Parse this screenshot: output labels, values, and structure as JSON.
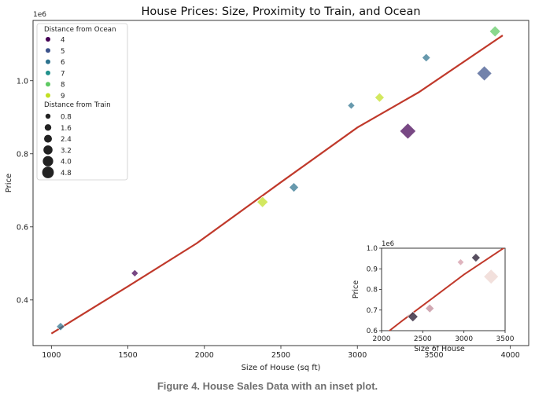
{
  "caption": "Figure 4. House Sales Data with an inset plot.",
  "chart_data": [
    {
      "type": "scatter",
      "title": "House Prices: Size, Proximity to Train, and Ocean",
      "xlabel": "Size of House (sq ft)",
      "ylabel": "Price",
      "y_offset_label": "1e6",
      "xlim": [
        880,
        4120
      ],
      "ylim": [
        0.275,
        1.165
      ],
      "xticks": [
        1000,
        1500,
        2000,
        2500,
        3000,
        3500,
        4000
      ],
      "yticks": [
        0.4,
        0.6,
        0.8,
        1.0
      ],
      "ytick_labels": [
        "0.4",
        "0.6",
        "0.8",
        "1.0"
      ],
      "marker": "diamond",
      "points": [
        {
          "x": 1060,
          "y": 0.327,
          "ocean": 6,
          "train": 1.2
        },
        {
          "x": 1545,
          "y": 0.473,
          "ocean": 4,
          "train": 0.8
        },
        {
          "x": 2380,
          "y": 0.668,
          "ocean": 9,
          "train": 2.2
        },
        {
          "x": 2585,
          "y": 0.708,
          "ocean": 6,
          "train": 1.6
        },
        {
          "x": 2960,
          "y": 0.932,
          "ocean": 6,
          "train": 0.8
        },
        {
          "x": 3145,
          "y": 0.954,
          "ocean": 9,
          "train": 1.6
        },
        {
          "x": 3330,
          "y": 0.862,
          "ocean": 4,
          "train": 4.0
        },
        {
          "x": 3450,
          "y": 1.063,
          "ocean": 6,
          "train": 1.2
        },
        {
          "x": 3830,
          "y": 1.02,
          "ocean": 5,
          "train": 3.6
        },
        {
          "x": 3900,
          "y": 1.135,
          "ocean": 8,
          "train": 2.2
        }
      ],
      "trend_line": {
        "x": [
          1000,
          1500,
          1950,
          2500,
          3000,
          3400,
          3950
        ],
        "y": [
          0.308,
          0.437,
          0.555,
          0.722,
          0.872,
          0.968,
          1.124
        ],
        "color": "#c0392b"
      },
      "legend": {
        "position": "upper-left",
        "hue_title": "Distance from Ocean",
        "hue_entries": [
          {
            "label": "4",
            "color": "#440154"
          },
          {
            "label": "5",
            "color": "#3b528b"
          },
          {
            "label": "6",
            "color": "#2c728e"
          },
          {
            "label": "7",
            "color": "#21918c"
          },
          {
            "label": "8",
            "color": "#5ec962"
          },
          {
            "label": "9",
            "color": "#c2df23"
          }
        ],
        "size_title": "Distance from Train",
        "size_entries": [
          {
            "label": "0.8",
            "value": 0.8
          },
          {
            "label": "1.6",
            "value": 1.6
          },
          {
            "label": "2.4",
            "value": 2.4
          },
          {
            "label": "3.2",
            "value": 3.2
          },
          {
            "label": "4.0",
            "value": 4.0
          },
          {
            "label": "4.8",
            "value": 4.8
          }
        ]
      }
    },
    {
      "type": "scatter",
      "inset": true,
      "xlabel": "Size of House",
      "ylabel": "Price",
      "y_offset_label": "1e6",
      "xlim": [
        2000,
        3500
      ],
      "ylim": [
        0.6,
        1.0
      ],
      "xticks": [
        2000,
        2500,
        3000,
        3500
      ],
      "yticks": [
        0.6,
        0.7,
        0.8,
        0.9,
        1.0
      ],
      "ytick_labels": [
        "0.6",
        "0.7",
        "0.8",
        "0.9",
        "1.0"
      ],
      "points": [
        {
          "x": 2380,
          "y": 0.668,
          "train": 2.2,
          "color": "#3b3044"
        },
        {
          "x": 2585,
          "y": 0.708,
          "train": 1.6,
          "color": "#c99aa6"
        },
        {
          "x": 2960,
          "y": 0.932,
          "train": 0.8,
          "color": "#d9a7b3"
        },
        {
          "x": 3145,
          "y": 0.954,
          "train": 1.6,
          "color": "#3b3044"
        },
        {
          "x": 3330,
          "y": 0.862,
          "train": 4.0,
          "color": "#f0dbd6"
        }
      ],
      "trend_line": {
        "x": [
          2000,
          2250,
          2500,
          3000,
          3500
        ],
        "y": [
          0.57,
          0.648,
          0.722,
          0.872,
          1.005
        ],
        "color": "#c0392b"
      }
    }
  ]
}
